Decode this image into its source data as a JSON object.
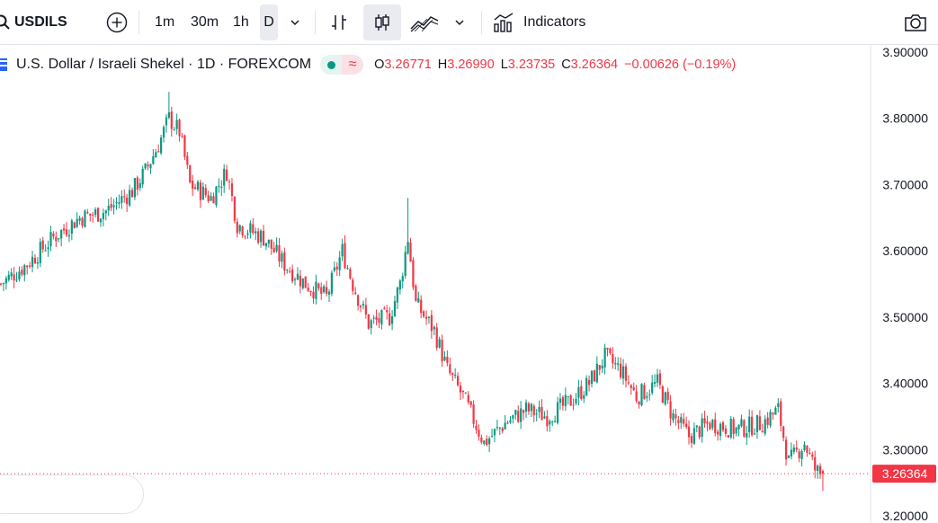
{
  "toolbar": {
    "symbol": "USDILS",
    "intervals": [
      "1m",
      "30m",
      "1h",
      "D"
    ],
    "active_interval": "D",
    "indicators_label": "Indicators",
    "icons": [
      "search-icon",
      "add-symbol-icon",
      "chevron-down-icon",
      "bar-chart-icon",
      "candles-icon",
      "area-chart-icon",
      "chevron-down-icon",
      "indicators-icon",
      "camera-icon"
    ]
  },
  "legend": {
    "title": "U.S. Dollar / Israeli Shekel · 1D · FOREXCOM",
    "open_label": "O",
    "open": "3.26771",
    "high_label": "H",
    "high": "3.26990",
    "low_label": "L",
    "low": "3.23735",
    "close_label": "C",
    "close": "3.26364",
    "change": "−0.00626 (−0.19%)"
  },
  "colors": {
    "up": "#089981",
    "down": "#f23645",
    "text": "#131722",
    "grid": "#f0f3fa"
  },
  "chart_data": {
    "type": "candlestick",
    "y_ticks": [
      "3.90000",
      "3.80000",
      "3.70000",
      "3.60000",
      "3.50000",
      "3.40000",
      "3.30000",
      "3.20000"
    ],
    "ylim": [
      3.2,
      3.9
    ],
    "last_price_label": "3.26364",
    "last_price": 3.26364,
    "close_path_approx": [
      [
        0,
        3.55
      ],
      [
        10,
        3.58
      ],
      [
        20,
        3.62
      ],
      [
        30,
        3.65
      ],
      [
        40,
        3.66
      ],
      [
        50,
        3.69
      ],
      [
        55,
        3.72
      ],
      [
        60,
        3.76
      ],
      [
        64,
        3.8
      ],
      [
        68,
        3.78
      ],
      [
        72,
        3.7
      ],
      [
        80,
        3.68
      ],
      [
        86,
        3.72
      ],
      [
        90,
        3.64
      ],
      [
        100,
        3.62
      ],
      [
        108,
        3.58
      ],
      [
        116,
        3.55
      ],
      [
        124,
        3.53
      ],
      [
        130,
        3.6
      ],
      [
        134,
        3.55
      ],
      [
        140,
        3.49
      ],
      [
        148,
        3.5
      ],
      [
        152,
        3.55
      ],
      [
        155,
        3.62
      ],
      [
        158,
        3.52
      ],
      [
        165,
        3.48
      ],
      [
        170,
        3.42
      ],
      [
        176,
        3.38
      ],
      [
        184,
        3.31
      ],
      [
        192,
        3.34
      ],
      [
        200,
        3.36
      ],
      [
        208,
        3.35
      ],
      [
        216,
        3.37
      ],
      [
        224,
        3.4
      ],
      [
        230,
        3.44
      ],
      [
        236,
        3.42
      ],
      [
        242,
        3.38
      ],
      [
        250,
        3.4
      ],
      [
        256,
        3.35
      ],
      [
        262,
        3.32
      ],
      [
        270,
        3.34
      ],
      [
        280,
        3.33
      ],
      [
        290,
        3.34
      ],
      [
        296,
        3.36
      ],
      [
        300,
        3.28
      ],
      [
        306,
        3.31
      ],
      [
        310,
        3.27
      ],
      [
        313,
        3.26
      ]
    ]
  }
}
